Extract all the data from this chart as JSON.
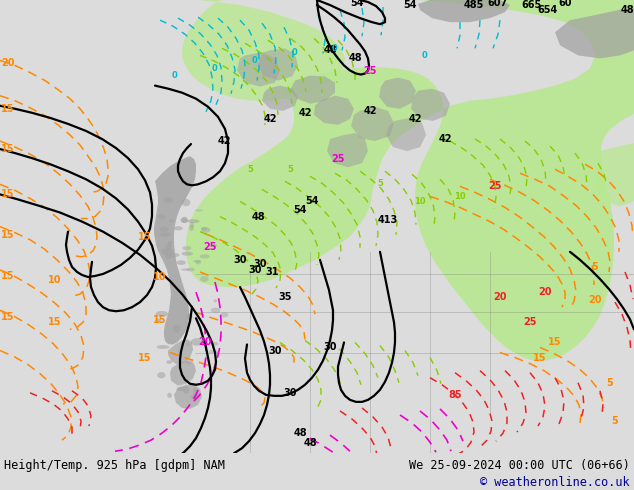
{
  "title_left": "Height/Temp. 925 hPa [gdpm] NAM",
  "title_right": "We 25-09-2024 00:00 UTC (06+66)",
  "copyright": "© weatheronline.co.uk",
  "bg_color": "#dcdcdc",
  "map_bg": "#dcdcdc",
  "green_fill": "#b8e890",
  "gray_fill": "#a0a0a0",
  "title_fontsize": 8.5,
  "copyright_color": "#000099",
  "fig_width": 6.34,
  "fig_height": 4.9,
  "dpi": 100
}
